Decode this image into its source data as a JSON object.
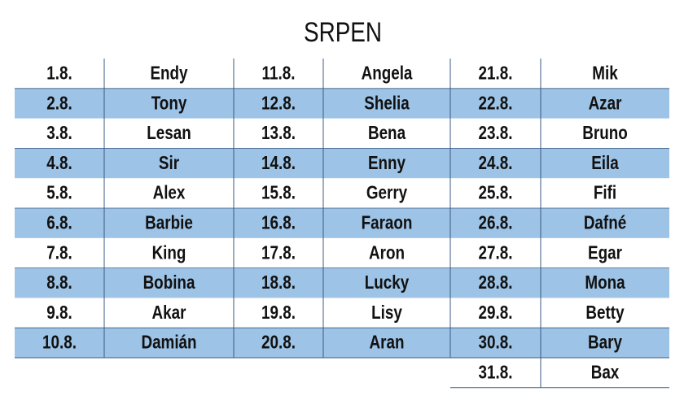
{
  "title": "SRPEN",
  "groups": [
    {
      "rows": [
        [
          "1.8.",
          "Endy"
        ],
        [
          "2.8.",
          "Tony"
        ],
        [
          "3.8.",
          "Lesan"
        ],
        [
          "4.8.",
          "Sir"
        ],
        [
          "5.8.",
          "Alex"
        ],
        [
          "6.8.",
          "Barbie"
        ],
        [
          "7.8.",
          "King"
        ],
        [
          "8.8.",
          "Bobina"
        ],
        [
          "9.8.",
          "Akar"
        ],
        [
          "10.8.",
          "Damián"
        ]
      ]
    },
    {
      "rows": [
        [
          "11.8.",
          "Angela"
        ],
        [
          "12.8.",
          "Shelia"
        ],
        [
          "13.8.",
          "Bena"
        ],
        [
          "14.8.",
          "Enny"
        ],
        [
          "15.8.",
          "Gerry"
        ],
        [
          "16.8.",
          "Faraon"
        ],
        [
          "17.8.",
          "Aron"
        ],
        [
          "18.8.",
          "Lucky"
        ],
        [
          "19.8.",
          "Lisy"
        ],
        [
          "20.8.",
          "Aran"
        ]
      ]
    },
    {
      "rows": [
        [
          "21.8.",
          "Mik"
        ],
        [
          "22.8.",
          "Azar"
        ],
        [
          "23.8.",
          "Bruno"
        ],
        [
          "24.8.",
          "Eila"
        ],
        [
          "25.8.",
          "Fifi"
        ],
        [
          "26.8.",
          "Dafné"
        ],
        [
          "27.8.",
          "Egar"
        ],
        [
          "28.8.",
          "Mona"
        ],
        [
          "29.8.",
          "Betty"
        ],
        [
          "30.8.",
          "Bary"
        ],
        [
          "31.8.",
          "Bax"
        ]
      ]
    }
  ]
}
